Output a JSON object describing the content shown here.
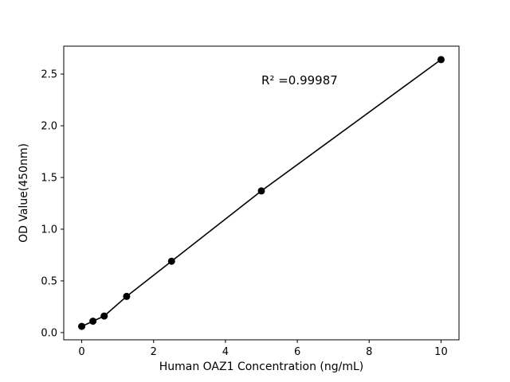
{
  "chart_data": {
    "type": "scatter",
    "title": "",
    "xlabel": "Human OAZ1 Concentration (ng/mL)",
    "ylabel": "OD Value(450nm)",
    "x": [
      0,
      0.3125,
      0.625,
      1.25,
      2.5,
      5,
      10
    ],
    "y": [
      0.06,
      0.11,
      0.16,
      0.35,
      0.69,
      1.37,
      2.64
    ],
    "xlim": [
      -0.5,
      10.5
    ],
    "ylim": [
      -0.07,
      2.77
    ],
    "xticks": [
      0,
      2,
      4,
      6,
      8,
      10
    ],
    "xtick_labels": [
      "0",
      "2",
      "4",
      "6",
      "8",
      "10"
    ],
    "yticks": [
      0.0,
      0.5,
      1.0,
      1.5,
      2.0,
      2.5
    ],
    "ytick_labels": [
      "0.0",
      "0.5",
      "1.0",
      "1.5",
      "2.0",
      "2.5"
    ],
    "annotation": {
      "text": "R² =0.99987",
      "x": 5.0,
      "y": 2.4
    },
    "line_color": "#000000",
    "marker_color": "#000000",
    "grid": "off",
    "legend": "none"
  }
}
